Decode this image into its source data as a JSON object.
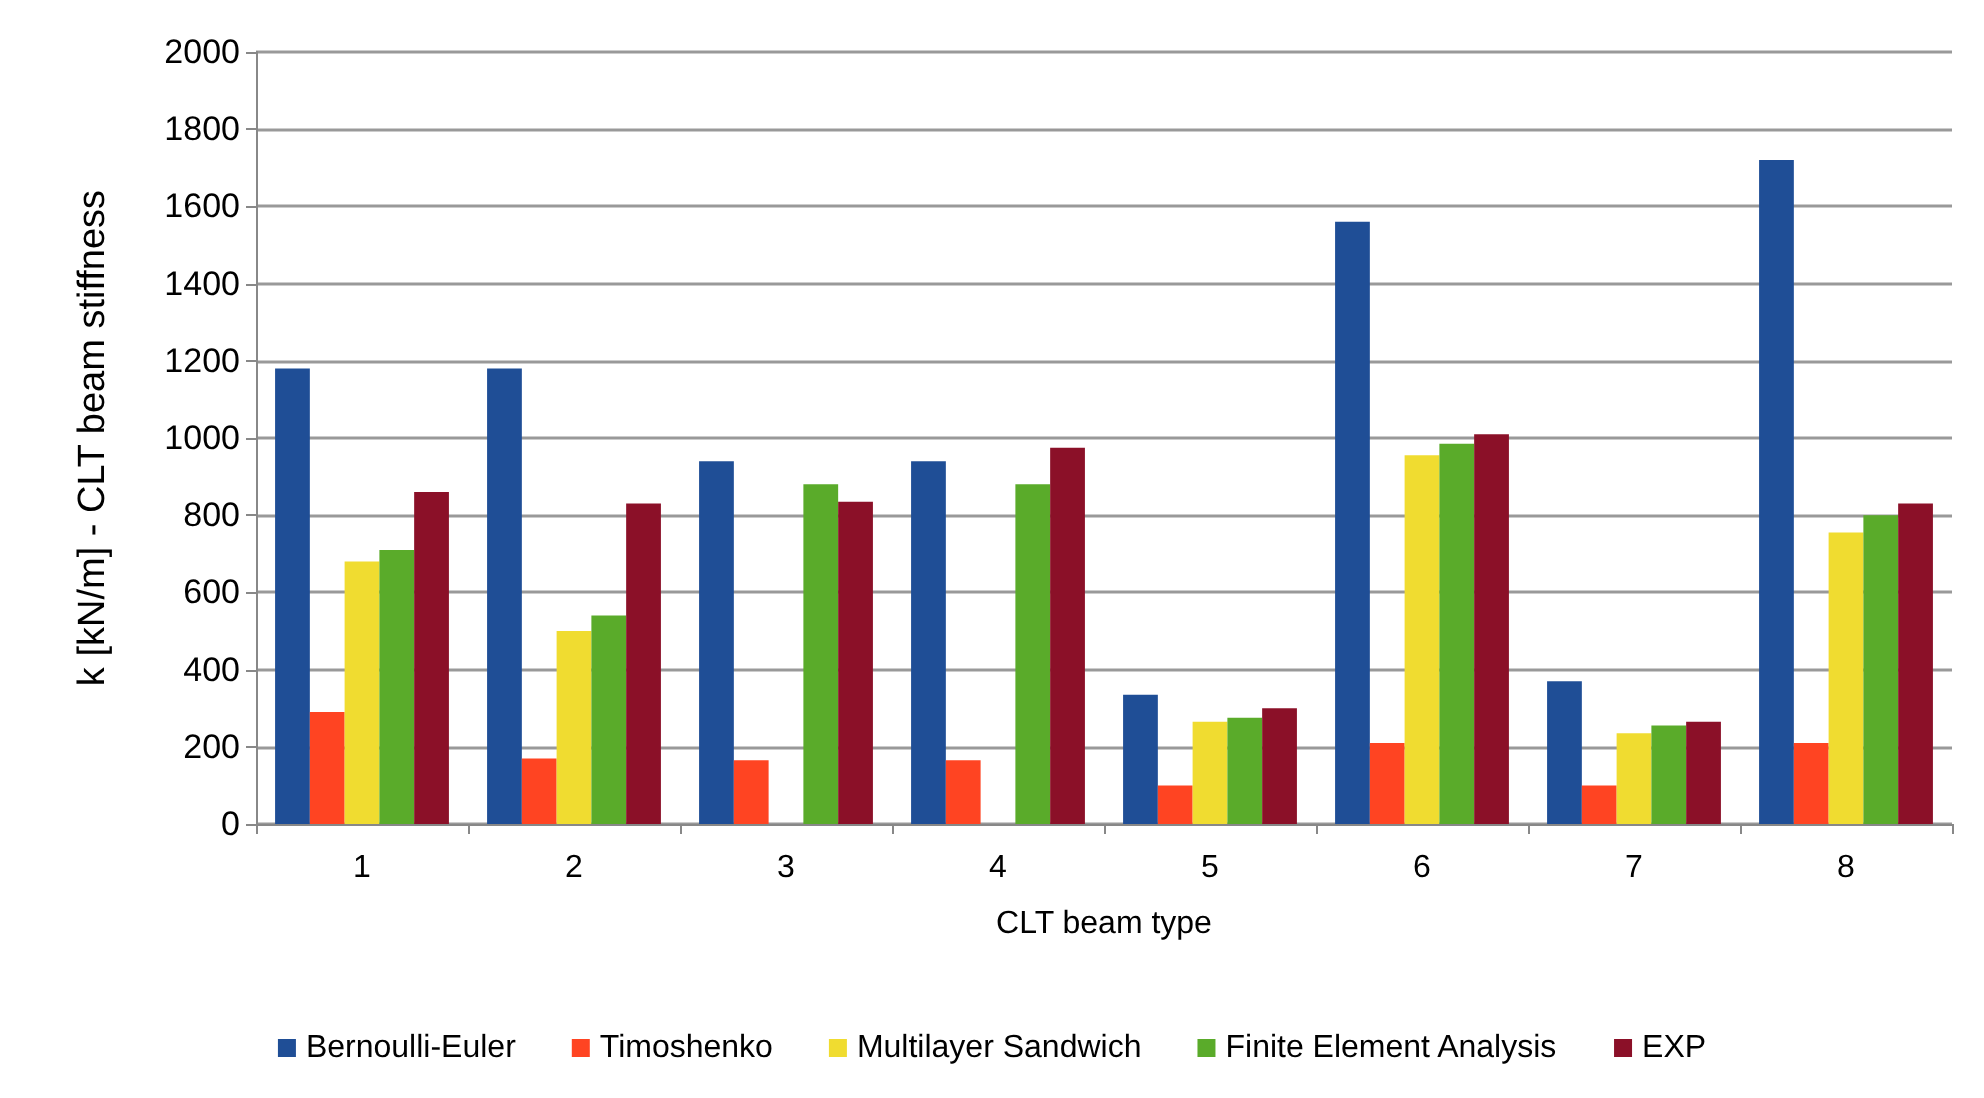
{
  "chart_data": {
    "type": "bar",
    "xlabel": "CLT beam type",
    "ylabel": "k [kN/m] - CLT beam stiffness",
    "categories": [
      "1",
      "2",
      "3",
      "4",
      "5",
      "6",
      "7",
      "8"
    ],
    "series": [
      {
        "name": "Bernoulli-Euler",
        "color": "#1f4e96",
        "values": [
          1180,
          1180,
          940,
          940,
          335,
          1560,
          370,
          1720
        ]
      },
      {
        "name": "Timoshenko",
        "color": "#ff4422",
        "values": [
          290,
          170,
          165,
          165,
          100,
          210,
          100,
          210
        ]
      },
      {
        "name": "Multilayer Sandwich",
        "color": "#f0dc30",
        "values": [
          680,
          500,
          null,
          null,
          265,
          955,
          235,
          755
        ]
      },
      {
        "name": "Finite Element Analysis",
        "color": "#5aab2a",
        "values": [
          710,
          540,
          880,
          880,
          275,
          985,
          255,
          800
        ]
      },
      {
        "name": "EXP",
        "color": "#8b1028",
        "values": [
          860,
          830,
          835,
          975,
          300,
          1010,
          265,
          830
        ]
      }
    ],
    "ylim": [
      0,
      2000
    ],
    "yticks": [
      0,
      200,
      400,
      600,
      800,
      1000,
      1200,
      1400,
      1600,
      1800,
      2000
    ],
    "grid": "y",
    "legend": "bottom"
  }
}
